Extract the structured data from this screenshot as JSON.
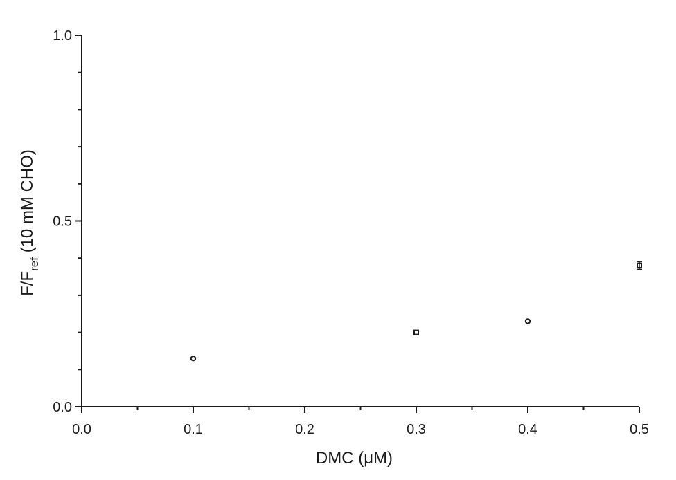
{
  "chart_data": {
    "type": "scatter",
    "title": "",
    "xlabel": "DMC (μM)",
    "ylabel_main": "F/F",
    "ylabel_sub": "ref",
    "ylabel_suffix": " (10 mM CHO)",
    "xlim": [
      0.0,
      0.5
    ],
    "ylim": [
      0.0,
      1.0
    ],
    "x_ticks": [
      "0.0",
      "0.1",
      "0.2",
      "0.3",
      "0.4",
      "0.5"
    ],
    "y_ticks": [
      "0.0",
      "0.5",
      "1.0"
    ],
    "x_tick_values": [
      0.0,
      0.1,
      0.2,
      0.3,
      0.4,
      0.5
    ],
    "y_tick_values": [
      0.0,
      0.5,
      1.0
    ],
    "x_minor_tick_values": [
      0.05,
      0.15,
      0.25,
      0.35,
      0.45
    ],
    "y_minor_tick_values": [
      0.1,
      0.2,
      0.3,
      0.4,
      0.6,
      0.7,
      0.8,
      0.9
    ],
    "grid": false,
    "legend": "none",
    "points": [
      {
        "x": 0.1,
        "y": 0.13,
        "marker": "circle",
        "err": 0
      },
      {
        "x": 0.3,
        "y": 0.2,
        "marker": "square",
        "err": 0
      },
      {
        "x": 0.4,
        "y": 0.23,
        "marker": "circle",
        "err": 0
      },
      {
        "x": 0.5,
        "y": 0.38,
        "marker": "square",
        "err": 0.01
      }
    ]
  }
}
